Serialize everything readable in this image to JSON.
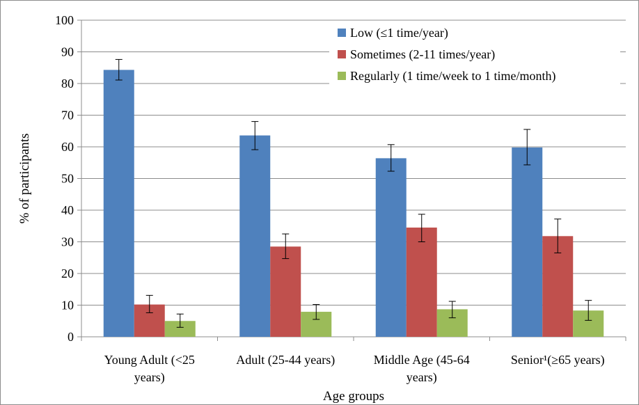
{
  "chart_data": {
    "type": "bar",
    "title": "",
    "xlabel": "Age groups",
    "ylabel": "% of participants",
    "ylim": [
      0,
      100
    ],
    "ytick_step": 10,
    "grid": true,
    "legend_position": "top-right",
    "categories": [
      [
        "Young Adult (<25",
        "years)"
      ],
      [
        "Adult (25-44 years)"
      ],
      [
        "Middle Age (45-64",
        "years)"
      ],
      [
        "Senior¹(≥65 years)"
      ]
    ],
    "series": [
      {
        "name": "Low (≤1 time/year)",
        "color": "#4f81bd",
        "values": [
          84.3,
          63.6,
          56.4,
          59.8
        ],
        "error_low": [
          81.1,
          59.1,
          52.3,
          54.3
        ],
        "error_high": [
          87.6,
          68.0,
          60.7,
          65.5
        ]
      },
      {
        "name": "Sometimes (2-11 times/year)",
        "color": "#c0504d",
        "values": [
          10.2,
          28.5,
          34.5,
          31.8
        ],
        "error_low": [
          7.6,
          24.7,
          30.0,
          26.5
        ],
        "error_high": [
          13.1,
          32.5,
          38.7,
          37.2
        ]
      },
      {
        "name": "Regularly (1 time/week to 1 time/month)",
        "color": "#9bbb59",
        "values": [
          5.0,
          7.9,
          8.7,
          8.3
        ],
        "error_low": [
          3.0,
          5.5,
          6.0,
          5.2
        ],
        "error_high": [
          7.2,
          10.2,
          11.2,
          11.5
        ]
      }
    ]
  }
}
